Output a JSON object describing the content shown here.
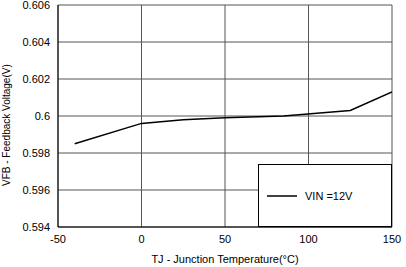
{
  "chart_data": {
    "type": "line",
    "x_label": "TJ - Junction Temperature(°C)",
    "y_label": "VFB - Feedback Voltage(V)",
    "series": [
      {
        "name": "VIN =12V",
        "color": "#000000",
        "x": [
          -40,
          0,
          25,
          50,
          85,
          125,
          150
        ],
        "values": [
          0.5985,
          0.5996,
          0.5998,
          0.5999,
          0.6,
          0.6003,
          0.6013
        ]
      }
    ],
    "xlim": [
      -50,
      150
    ],
    "xticks": [
      -50,
      0,
      50,
      100,
      150
    ],
    "ylim": [
      0.594,
      0.606
    ],
    "yticks": [
      0.594,
      0.596,
      0.598,
      0.6,
      0.602,
      0.604,
      0.606
    ],
    "grid": true,
    "legend": "lower right"
  }
}
